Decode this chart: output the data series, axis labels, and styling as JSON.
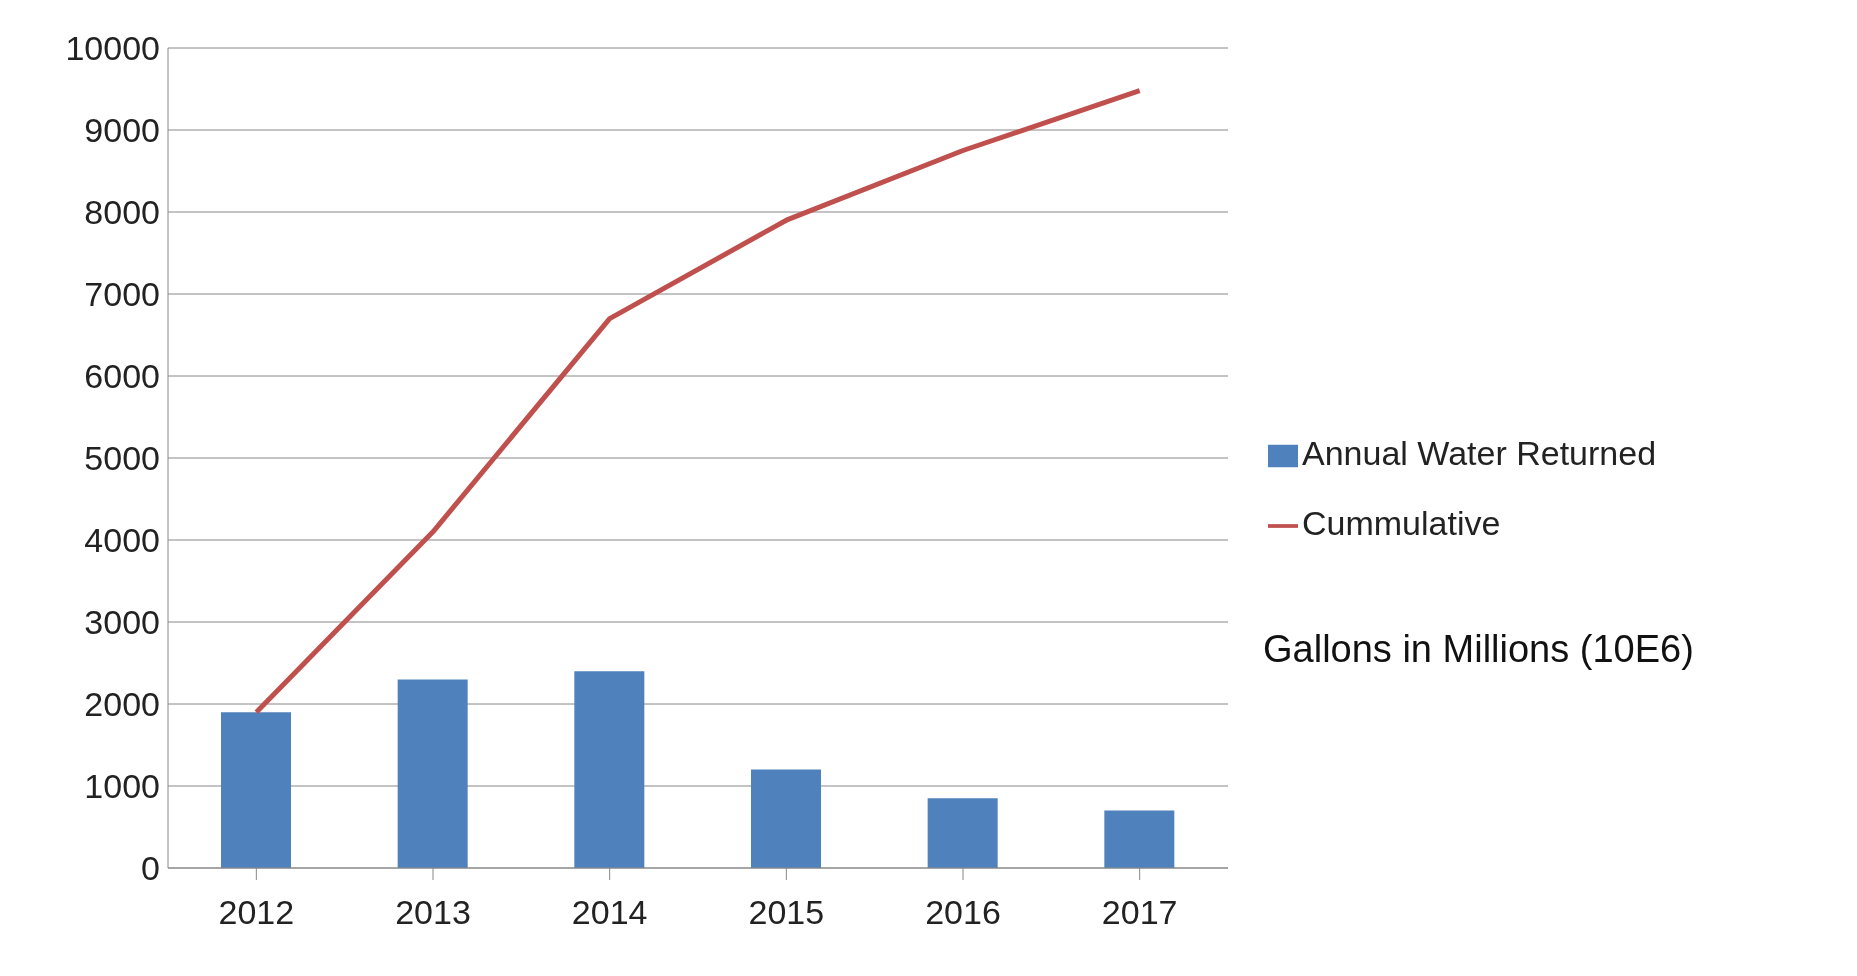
{
  "chart_data": {
    "type": "bar",
    "categories": [
      "2012",
      "2013",
      "2014",
      "2015",
      "2016",
      "2017"
    ],
    "series": [
      {
        "name": "Annual Water Returned",
        "color": "#4f81bd",
        "values": [
          1900,
          2300,
          2400,
          1200,
          850,
          700
        ]
      },
      {
        "name": "Cummulative",
        "type": "line",
        "color": "#c0504d",
        "values": [
          1900,
          4100,
          6700,
          7900,
          8750,
          9480
        ]
      }
    ],
    "ylim": [
      0,
      10000
    ],
    "yticks": [
      0,
      1000,
      2000,
      3000,
      4000,
      5000,
      6000,
      7000,
      8000,
      9000,
      10000
    ],
    "grid": "y",
    "legend": "right",
    "marker": "none",
    "annotations": [
      "Gallons in Millions (10E6)"
    ]
  }
}
